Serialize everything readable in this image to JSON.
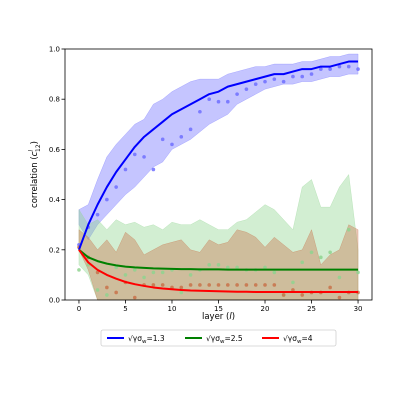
{
  "chart_data": {
    "type": "line",
    "xlabel": "layer (l)",
    "ylabel": "correlation (c^l_12)",
    "xlim": [
      -1.5,
      31.5
    ],
    "ylim": [
      0.0,
      1.0
    ],
    "xticks": [
      0,
      5,
      10,
      15,
      20,
      25,
      30
    ],
    "yticks": [
      0.0,
      0.2,
      0.4,
      0.6,
      0.8,
      1.0
    ],
    "xtick_labels": [
      "0",
      "5",
      "10",
      "15",
      "20",
      "25",
      "30"
    ],
    "ytick_labels": [
      "0.0",
      "0.2",
      "0.4",
      "0.6",
      "0.8",
      "1.0"
    ],
    "grid": false,
    "legend_position": "bottom-outside",
    "series": [
      {
        "name": "√γσw=1.3",
        "legend_prefix": "√γσ",
        "legend_sub": "w",
        "legend_suffix": "=1.3",
        "color": "#0000ff",
        "fill_color": "#6f6fff",
        "curve_x": [
          0,
          1,
          2,
          3,
          4,
          5,
          6,
          7,
          8,
          9,
          10,
          11,
          12,
          13,
          14,
          15,
          16,
          17,
          18,
          19,
          20,
          21,
          22,
          23,
          24,
          25,
          26,
          27,
          28,
          29,
          30
        ],
        "curve_y": [
          0.2,
          0.3,
          0.38,
          0.45,
          0.51,
          0.56,
          0.61,
          0.65,
          0.68,
          0.71,
          0.74,
          0.76,
          0.78,
          0.8,
          0.82,
          0.83,
          0.85,
          0.86,
          0.87,
          0.88,
          0.89,
          0.9,
          0.9,
          0.91,
          0.92,
          0.92,
          0.93,
          0.93,
          0.94,
          0.95,
          0.95
        ],
        "points_x": [
          0,
          1,
          2,
          3,
          4,
          5,
          6,
          7,
          8,
          9,
          10,
          11,
          12,
          13,
          14,
          15,
          16,
          17,
          18,
          19,
          20,
          21,
          22,
          23,
          24,
          25,
          26,
          27,
          28,
          29,
          30
        ],
        "points_y": [
          0.22,
          0.29,
          0.34,
          0.4,
          0.45,
          0.52,
          0.58,
          0.57,
          0.52,
          0.64,
          0.62,
          0.65,
          0.68,
          0.75,
          0.8,
          0.79,
          0.79,
          0.82,
          0.84,
          0.86,
          0.87,
          0.88,
          0.87,
          0.89,
          0.89,
          0.9,
          0.92,
          0.92,
          0.93,
          0.93,
          0.92
        ],
        "band_lower": [
          0.3,
          0.24,
          0.3,
          0.34,
          0.38,
          0.42,
          0.45,
          0.49,
          0.53,
          0.55,
          0.6,
          0.62,
          0.64,
          0.67,
          0.7,
          0.72,
          0.74,
          0.78,
          0.8,
          0.82,
          0.84,
          0.85,
          0.86,
          0.86,
          0.87,
          0.87,
          0.88,
          0.89,
          0.89,
          0.9,
          0.9
        ],
        "band_upper": [
          0.36,
          0.38,
          0.48,
          0.57,
          0.62,
          0.66,
          0.7,
          0.72,
          0.78,
          0.8,
          0.83,
          0.85,
          0.87,
          0.88,
          0.88,
          0.88,
          0.9,
          0.91,
          0.92,
          0.93,
          0.93,
          0.94,
          0.94,
          0.94,
          0.95,
          0.95,
          0.96,
          0.97,
          0.97,
          0.98,
          0.98
        ]
      },
      {
        "name": "√γσw=2.5",
        "legend_prefix": "√γσ",
        "legend_sub": "w",
        "legend_suffix": "=2.5",
        "color": "#008000",
        "fill_color": "#8fd48f",
        "curve_x": [
          0,
          1,
          2,
          3,
          4,
          5,
          6,
          7,
          8,
          9,
          10,
          11,
          12,
          13,
          14,
          15,
          16,
          17,
          18,
          19,
          20,
          21,
          22,
          23,
          24,
          25,
          26,
          27,
          28,
          29,
          30
        ],
        "curve_y": [
          0.2,
          0.17,
          0.155,
          0.145,
          0.138,
          0.133,
          0.13,
          0.128,
          0.126,
          0.125,
          0.124,
          0.123,
          0.123,
          0.122,
          0.122,
          0.122,
          0.121,
          0.121,
          0.121,
          0.121,
          0.121,
          0.121,
          0.121,
          0.121,
          0.121,
          0.121,
          0.121,
          0.121,
          0.121,
          0.121,
          0.121
        ],
        "points_x": [
          0,
          1,
          2,
          3,
          4,
          5,
          6,
          7,
          8,
          9,
          10,
          11,
          12,
          13,
          14,
          15,
          16,
          17,
          18,
          19,
          20,
          21,
          22,
          23,
          24,
          25,
          26,
          27,
          28,
          29,
          30
        ],
        "points_y": [
          0.12,
          0.14,
          0.04,
          0.02,
          0.13,
          0.1,
          0.12,
          0.09,
          0.11,
          0.11,
          0.12,
          0.03,
          0.1,
          0.12,
          0.14,
          0.14,
          0.13,
          0.13,
          0.12,
          0.12,
          0.13,
          0.11,
          0.02,
          0.07,
          0.15,
          0.19,
          0.17,
          0.19,
          0.09,
          0.28,
          0.11
        ],
        "band_lower": [
          0.14,
          0.1,
          0.0,
          0.0,
          0.0,
          0.0,
          0.0,
          0.0,
          0.0,
          0.0,
          0.0,
          0.0,
          0.0,
          0.0,
          0.0,
          0.0,
          0.0,
          0.0,
          0.0,
          0.0,
          0.0,
          0.0,
          0.0,
          0.0,
          0.0,
          0.0,
          0.0,
          0.0,
          0.0,
          0.0,
          0.0
        ],
        "band_upper": [
          0.36,
          0.3,
          0.32,
          0.28,
          0.32,
          0.3,
          0.31,
          0.29,
          0.3,
          0.28,
          0.31,
          0.3,
          0.3,
          0.32,
          0.3,
          0.28,
          0.28,
          0.31,
          0.32,
          0.35,
          0.38,
          0.36,
          0.32,
          0.28,
          0.45,
          0.48,
          0.37,
          0.37,
          0.45,
          0.5,
          0.2
        ]
      },
      {
        "name": "√γσw=4",
        "legend_prefix": "√γσ",
        "legend_sub": "w",
        "legend_suffix": "=4",
        "color": "#ff0000",
        "fill_color": "#c8724a",
        "curve_x": [
          0,
          1,
          2,
          3,
          4,
          5,
          6,
          7,
          8,
          9,
          10,
          11,
          12,
          13,
          14,
          15,
          16,
          17,
          18,
          19,
          20,
          21,
          22,
          23,
          24,
          25,
          26,
          27,
          28,
          29,
          30
        ],
        "curve_y": [
          0.2,
          0.15,
          0.12,
          0.1,
          0.085,
          0.072,
          0.063,
          0.056,
          0.05,
          0.046,
          0.043,
          0.04,
          0.038,
          0.037,
          0.036,
          0.035,
          0.034,
          0.033,
          0.033,
          0.032,
          0.032,
          0.032,
          0.032,
          0.032,
          0.032,
          0.032,
          0.032,
          0.032,
          0.032,
          0.032,
          0.032
        ],
        "points_x": [
          0,
          1,
          2,
          3,
          4,
          5,
          6,
          7,
          8,
          9,
          10,
          11,
          12,
          13,
          14,
          15,
          16,
          17,
          18,
          19,
          20,
          21,
          22,
          23,
          24,
          25,
          26,
          27,
          28,
          29,
          30
        ],
        "points_y": [
          0.21,
          0.17,
          0.11,
          0.05,
          0.03,
          0.07,
          0.01,
          0.06,
          0.06,
          0.06,
          0.05,
          0.05,
          0.06,
          0.06,
          0.06,
          0.06,
          0.06,
          0.06,
          0.06,
          0.06,
          0.06,
          0.06,
          0.02,
          0.04,
          0.02,
          0.03,
          0.03,
          0.05,
          0.01,
          0.03,
          0.03
        ],
        "band_lower": [
          0.2,
          0.12,
          0.0,
          0.0,
          0.0,
          0.0,
          0.0,
          0.0,
          0.0,
          0.0,
          0.0,
          0.0,
          0.0,
          0.0,
          0.0,
          0.0,
          0.0,
          0.0,
          0.0,
          0.0,
          0.0,
          0.0,
          0.0,
          0.0,
          0.0,
          0.0,
          0.0,
          0.0,
          0.0,
          0.0,
          0.0
        ],
        "band_upper": [
          0.28,
          0.25,
          0.2,
          0.24,
          0.19,
          0.27,
          0.24,
          0.18,
          0.2,
          0.22,
          0.23,
          0.24,
          0.2,
          0.19,
          0.24,
          0.22,
          0.23,
          0.28,
          0.27,
          0.25,
          0.21,
          0.25,
          0.22,
          0.19,
          0.2,
          0.28,
          0.14,
          0.18,
          0.2,
          0.3,
          0.28
        ]
      }
    ]
  }
}
